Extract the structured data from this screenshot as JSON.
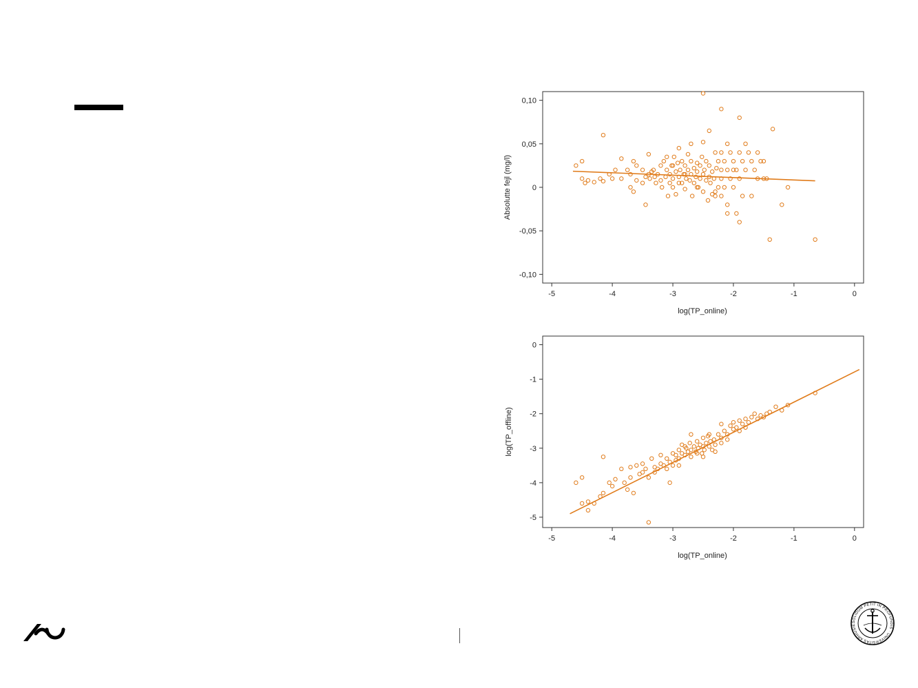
{
  "accent_color": "#E07B1A",
  "seal_text": "SOLIDUM PETIT IN PROFUNDIS · UNIVERSITAS ARHUSIENSIS",
  "chart_data": [
    {
      "type": "scatter",
      "title": "",
      "xlabel": "log(TP_online)",
      "ylabel": "Absolutte fejl (mg/l)",
      "xlim": [
        -5.15,
        0.15
      ],
      "ylim": [
        -0.11,
        0.11
      ],
      "xticks": [
        -5,
        -4,
        -3,
        -2,
        -1,
        0
      ],
      "xtick_labels": [
        "-5",
        "-4",
        "-3",
        "-2",
        "-1",
        "0"
      ],
      "yticks": [
        0.1,
        0.05,
        0,
        -0.05,
        -0.1
      ],
      "ytick_labels": [
        "0,10",
        "0,05",
        "0",
        "-0,05",
        "-0,10"
      ],
      "grid": false,
      "trend_line": {
        "x": [
          -4.65,
          -0.65
        ],
        "y": [
          0.0185,
          0.0075
        ]
      },
      "points": [
        [
          -4.6,
          0.025
        ],
        [
          -4.5,
          0.03
        ],
        [
          -4.5,
          0.01
        ],
        [
          -4.45,
          0.005
        ],
        [
          -4.4,
          0.008
        ],
        [
          -4.3,
          0.006
        ],
        [
          -4.2,
          0.01
        ],
        [
          -4.15,
          0.06
        ],
        [
          -4.15,
          0.007
        ],
        [
          -4.05,
          0.015
        ],
        [
          -4.0,
          0.01
        ],
        [
          -3.95,
          0.02
        ],
        [
          -3.85,
          0.033
        ],
        [
          -3.85,
          0.01
        ],
        [
          -3.75,
          0.02
        ],
        [
          -3.7,
          0.015
        ],
        [
          -3.7,
          0.0
        ],
        [
          -3.65,
          0.03
        ],
        [
          -3.65,
          -0.005
        ],
        [
          -3.6,
          0.025
        ],
        [
          -3.6,
          0.008
        ],
        [
          -3.5,
          0.02
        ],
        [
          -3.5,
          0.005
        ],
        [
          -3.45,
          -0.02
        ],
        [
          -3.45,
          0.012
        ],
        [
          -3.4,
          0.038
        ],
        [
          -3.4,
          0.015
        ],
        [
          -3.38,
          0.01
        ],
        [
          -3.35,
          0.018
        ],
        [
          -3.32,
          0.02
        ],
        [
          -3.3,
          0.012
        ],
        [
          -3.28,
          0.005
        ],
        [
          -3.25,
          0.015
        ],
        [
          -3.2,
          0.025
        ],
        [
          -3.2,
          0.008
        ],
        [
          -3.18,
          0.0
        ],
        [
          -3.15,
          0.03
        ],
        [
          -3.12,
          0.012
        ],
        [
          -3.1,
          0.035
        ],
        [
          -3.1,
          0.02
        ],
        [
          -3.08,
          -0.01
        ],
        [
          -3.05,
          0.015
        ],
        [
          -3.05,
          0.005
        ],
        [
          -3.02,
          0.025
        ],
        [
          -3.0,
          0.01
        ],
        [
          -3.0,
          0.0
        ],
        [
          -2.98,
          0.035
        ],
        [
          -2.95,
          0.018
        ],
        [
          -2.95,
          -0.008
        ],
        [
          -2.92,
          0.028
        ],
        [
          -2.9,
          0.012
        ],
        [
          -2.9,
          0.045
        ],
        [
          -2.88,
          0.02
        ],
        [
          -2.85,
          0.005
        ],
        [
          -2.85,
          0.03
        ],
        [
          -2.82,
          0.015
        ],
        [
          -2.8,
          0.025
        ],
        [
          -2.8,
          -0.002
        ],
        [
          -2.78,
          0.01
        ],
        [
          -2.75,
          0.02
        ],
        [
          -2.75,
          0.038
        ],
        [
          -2.72,
          0.008
        ],
        [
          -2.7,
          0.015
        ],
        [
          -2.7,
          0.03
        ],
        [
          -2.68,
          -0.01
        ],
        [
          -2.65,
          0.022
        ],
        [
          -2.65,
          0.005
        ],
        [
          -2.62,
          0.012
        ],
        [
          -2.6,
          0.028
        ],
        [
          -2.6,
          0.018
        ],
        [
          -2.58,
          0.0
        ],
        [
          -2.55,
          0.025
        ],
        [
          -2.55,
          0.01
        ],
        [
          -2.52,
          0.035
        ],
        [
          -2.5,
          0.015
        ],
        [
          -2.5,
          -0.005
        ],
        [
          -2.48,
          0.02
        ],
        [
          -2.45,
          0.008
        ],
        [
          -2.45,
          0.03
        ],
        [
          -2.42,
          -0.015
        ],
        [
          -2.4,
          0.012
        ],
        [
          -2.4,
          0.025
        ],
        [
          -2.38,
          0.005
        ],
        [
          -2.35,
          0.018
        ],
        [
          -2.35,
          -0.008
        ],
        [
          -2.32,
          0.01
        ],
        [
          -2.3,
          0.04
        ],
        [
          -2.3,
          -0.005
        ],
        [
          -2.28,
          0.022
        ],
        [
          -2.25,
          0.03
        ],
        [
          -2.25,
          0.0
        ],
        [
          -2.2,
          0.04
        ],
        [
          -2.2,
          0.02
        ],
        [
          -2.2,
          0.01
        ],
        [
          -2.2,
          -0.01
        ],
        [
          -2.15,
          0.03
        ],
        [
          -2.15,
          0.0
        ],
        [
          -2.1,
          0.05
        ],
        [
          -2.1,
          0.02
        ],
        [
          -2.1,
          -0.02
        ],
        [
          -2.05,
          0.04
        ],
        [
          -2.05,
          0.01
        ],
        [
          -2.0,
          0.03
        ],
        [
          -2.0,
          0.0
        ],
        [
          -1.95,
          0.02
        ],
        [
          -1.95,
          -0.03
        ],
        [
          -1.9,
          0.04
        ],
        [
          -1.9,
          0.01
        ],
        [
          -1.85,
          0.03
        ],
        [
          -1.85,
          -0.01
        ],
        [
          -1.8,
          0.05
        ],
        [
          -1.8,
          0.02
        ],
        [
          -1.75,
          0.04
        ],
        [
          -1.7,
          0.03
        ],
        [
          -1.7,
          -0.01
        ],
        [
          -1.65,
          0.02
        ],
        [
          -1.6,
          0.04
        ],
        [
          -1.6,
          0.01
        ],
        [
          -1.55,
          0.03
        ],
        [
          -1.5,
          0.03
        ],
        [
          -1.5,
          0.01
        ],
        [
          -1.45,
          0.01
        ],
        [
          -1.4,
          -0.06
        ],
        [
          -1.35,
          0.067
        ],
        [
          -1.2,
          -0.02
        ],
        [
          -1.1,
          0.0
        ],
        [
          -2.5,
          0.108
        ],
        [
          -2.2,
          0.09
        ],
        [
          -1.9,
          0.08
        ],
        [
          -2.4,
          0.065
        ],
        [
          -2.5,
          0.052
        ],
        [
          -2.7,
          0.05
        ],
        [
          -0.65,
          -0.06
        ],
        [
          -1.9,
          -0.04
        ],
        [
          -2.1,
          -0.03
        ],
        [
          -2.3,
          -0.01
        ],
        [
          -2.0,
          0.02
        ],
        [
          -2.6,
          0.0
        ],
        [
          -2.8,
          0.015
        ],
        [
          -3.0,
          0.025
        ],
        [
          -2.9,
          0.005
        ]
      ]
    },
    {
      "type": "scatter",
      "title": "",
      "xlabel": "log(TP_online)",
      "ylabel": "log(TP_offline)",
      "xlim": [
        -5.15,
        0.15
      ],
      "ylim": [
        -5.3,
        0.25
      ],
      "xticks": [
        -5,
        -4,
        -3,
        -2,
        -1,
        0
      ],
      "xtick_labels": [
        "-5",
        "-4",
        "-3",
        "-2",
        "-1",
        "0"
      ],
      "yticks": [
        0,
        -1,
        -2,
        -3,
        -4,
        -5
      ],
      "ytick_labels": [
        "0",
        "-1",
        "-2",
        "-3",
        "-4",
        "-5"
      ],
      "grid": false,
      "trend_line": {
        "x": [
          -4.7,
          0.08
        ],
        "y": [
          -4.9,
          -0.72
        ]
      },
      "points": [
        [
          -4.6,
          -4.0
        ],
        [
          -4.5,
          -3.85
        ],
        [
          -4.5,
          -4.6
        ],
        [
          -4.4,
          -4.55
        ],
        [
          -4.4,
          -4.8
        ],
        [
          -4.3,
          -4.6
        ],
        [
          -4.2,
          -4.4
        ],
        [
          -4.15,
          -3.25
        ],
        [
          -4.15,
          -4.3
        ],
        [
          -4.05,
          -4.0
        ],
        [
          -4.0,
          -4.1
        ],
        [
          -3.95,
          -3.9
        ],
        [
          -3.85,
          -3.6
        ],
        [
          -3.8,
          -4.0
        ],
        [
          -3.75,
          -4.2
        ],
        [
          -3.7,
          -3.85
        ],
        [
          -3.65,
          -4.3
        ],
        [
          -3.6,
          -3.5
        ],
        [
          -3.55,
          -3.75
        ],
        [
          -3.5,
          -3.7
        ],
        [
          -3.45,
          -3.6
        ],
        [
          -3.4,
          -5.15
        ],
        [
          -3.4,
          -3.85
        ],
        [
          -3.35,
          -3.3
        ],
        [
          -3.3,
          -3.55
        ],
        [
          -3.25,
          -3.6
        ],
        [
          -3.2,
          -3.45
        ],
        [
          -3.15,
          -3.5
        ],
        [
          -3.1,
          -3.3
        ],
        [
          -3.05,
          -3.4
        ],
        [
          -3.05,
          -4.0
        ],
        [
          -3.0,
          -3.5
        ],
        [
          -2.95,
          -3.2
        ],
        [
          -2.95,
          -3.35
        ],
        [
          -2.9,
          -3.05
        ],
        [
          -2.9,
          -3.3
        ],
        [
          -2.85,
          -3.15
        ],
        [
          -2.85,
          -2.9
        ],
        [
          -2.8,
          -3.2
        ],
        [
          -2.78,
          -3.0
        ],
        [
          -2.75,
          -3.1
        ],
        [
          -2.72,
          -2.85
        ],
        [
          -2.7,
          -3.05
        ],
        [
          -2.7,
          -3.25
        ],
        [
          -2.65,
          -2.95
        ],
        [
          -2.62,
          -3.1
        ],
        [
          -2.6,
          -2.8
        ],
        [
          -2.58,
          -3.0
        ],
        [
          -2.55,
          -2.9
        ],
        [
          -2.52,
          -3.15
        ],
        [
          -2.5,
          -2.95
        ],
        [
          -2.5,
          -2.7
        ],
        [
          -2.48,
          -3.05
        ],
        [
          -2.45,
          -2.85
        ],
        [
          -2.42,
          -2.65
        ],
        [
          -2.4,
          -2.95
        ],
        [
          -2.38,
          -2.8
        ],
        [
          -2.35,
          -3.05
        ],
        [
          -2.32,
          -2.75
        ],
        [
          -2.3,
          -2.9
        ],
        [
          -2.25,
          -2.6
        ],
        [
          -2.2,
          -2.7
        ],
        [
          -2.2,
          -2.3
        ],
        [
          -2.15,
          -2.5
        ],
        [
          -2.1,
          -2.6
        ],
        [
          -2.05,
          -2.35
        ],
        [
          -2.0,
          -2.45
        ],
        [
          -1.95,
          -2.4
        ],
        [
          -1.9,
          -2.2
        ],
        [
          -1.85,
          -2.3
        ],
        [
          -1.8,
          -2.15
        ],
        [
          -1.75,
          -2.25
        ],
        [
          -1.7,
          -2.1
        ],
        [
          -1.65,
          -2.0
        ],
        [
          -1.6,
          -2.15
        ],
        [
          -1.55,
          -2.05
        ],
        [
          -1.5,
          -2.1
        ],
        [
          -1.45,
          -2.0
        ],
        [
          -1.4,
          -1.95
        ],
        [
          -1.3,
          -1.8
        ],
        [
          -1.2,
          -1.9
        ],
        [
          -1.1,
          -1.75
        ],
        [
          -0.65,
          -1.4
        ],
        [
          -3.3,
          -3.7
        ],
        [
          -3.1,
          -3.6
        ],
        [
          -3.0,
          -3.15
        ],
        [
          -2.8,
          -2.95
        ],
        [
          -2.6,
          -3.15
        ],
        [
          -2.4,
          -2.6
        ],
        [
          -2.2,
          -2.85
        ],
        [
          -2.0,
          -2.25
        ],
        [
          -1.8,
          -2.4
        ],
        [
          -2.9,
          -3.5
        ],
        [
          -3.2,
          -3.2
        ],
        [
          -3.5,
          -3.45
        ],
        [
          -3.7,
          -3.55
        ],
        [
          -2.7,
          -2.6
        ],
        [
          -2.5,
          -3.25
        ],
        [
          -2.3,
          -3.1
        ],
        [
          -2.1,
          -2.75
        ],
        [
          -1.9,
          -2.5
        ]
      ]
    }
  ]
}
